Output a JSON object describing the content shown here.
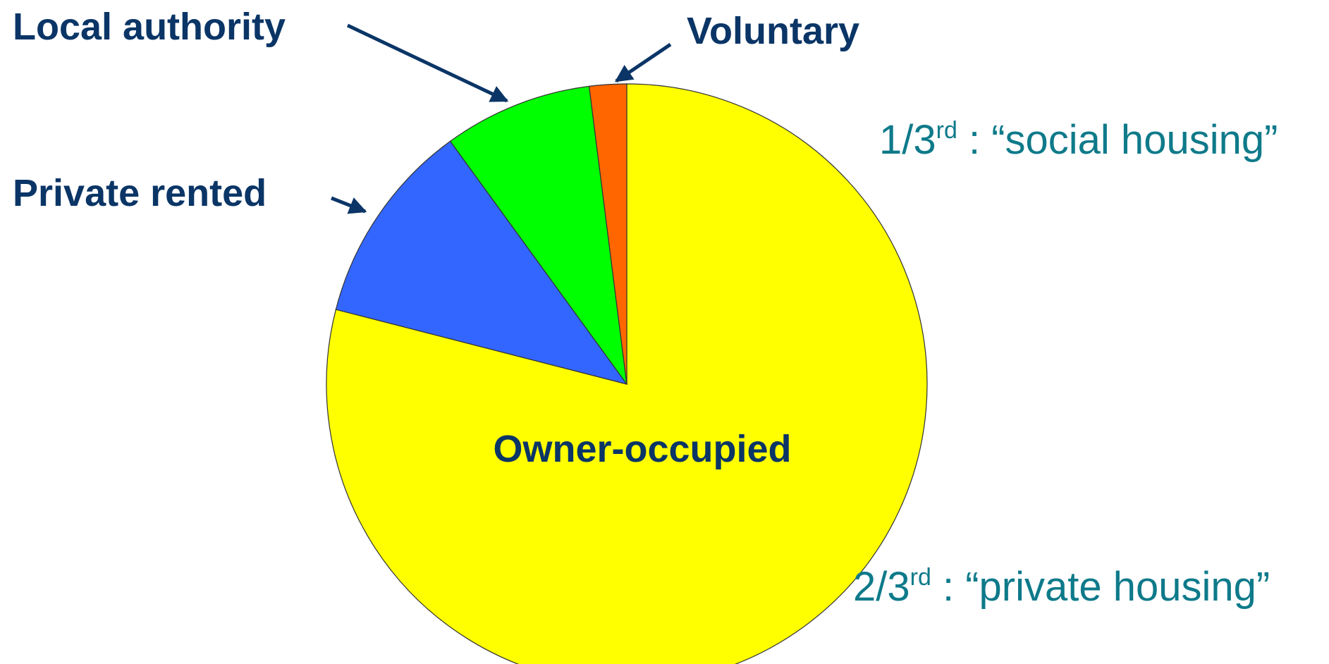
{
  "chart_data": {
    "type": "pie",
    "categories": [
      "Owner-occupied",
      "Private rented",
      "Local authority",
      "Voluntary"
    ],
    "values": [
      79,
      11,
      8,
      2
    ],
    "colors": [
      "#ffff00",
      "#3366ff",
      "#00ff00",
      "#ff6600"
    ],
    "annotations": [
      {
        "text": "1/3",
        "sup": "rd",
        "rest": " : “social housing”"
      },
      {
        "text": "2/3",
        "sup": "rd",
        "rest": " : “private housing”"
      }
    ]
  }
}
